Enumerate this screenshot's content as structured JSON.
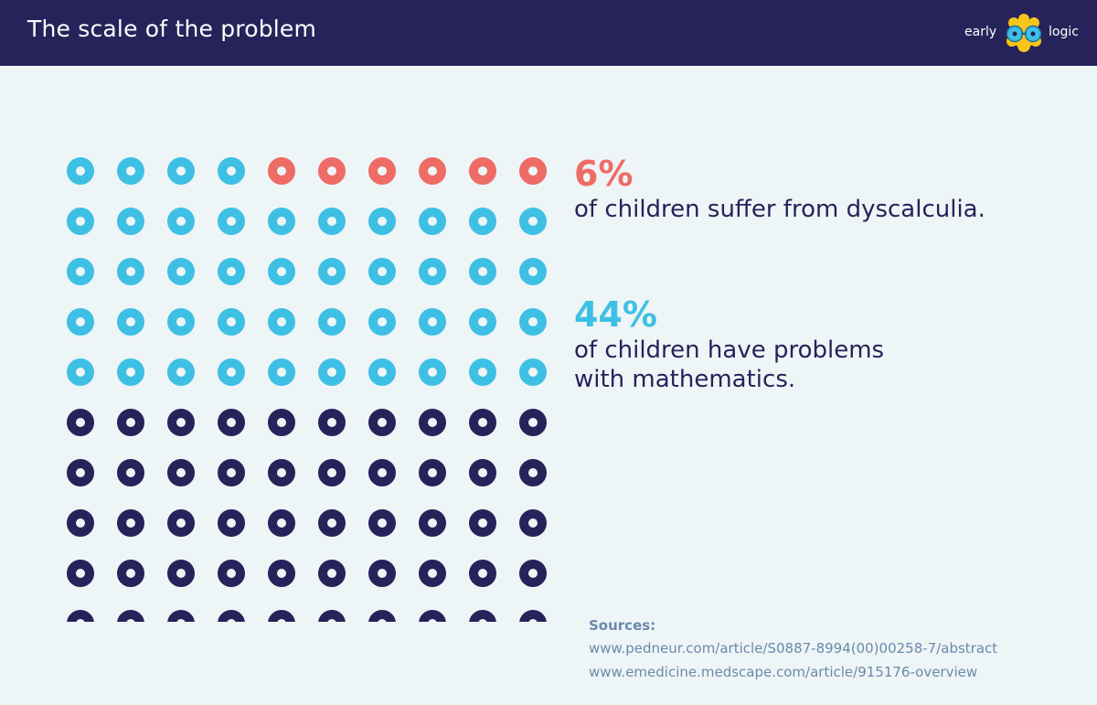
{
  "header": {
    "title": "The scale of the problem",
    "logo_left": "early",
    "logo_right": "logic"
  },
  "colors": {
    "header_bg": "#25235a",
    "page_bg": "#eef5f6",
    "red": "#ee6b66",
    "blue": "#3ec0e4",
    "navy": "#25235a",
    "logo_yellow": "#f5c518",
    "source_text": "#6b89ad"
  },
  "stats": [
    {
      "value": "6%",
      "text": "of children suffer from dyscalculia."
    },
    {
      "value": "44%",
      "text_line1": "of children have problems",
      "text_line2": "with mathematics."
    }
  ],
  "sources": {
    "label": "Sources:",
    "items": [
      "www.pedneur.com/article/S0887-8994(00)00258-7/abstract",
      "www.emedicine.medscape.com/article/915176-overview"
    ]
  },
  "chart_data": {
    "type": "waffle",
    "rows": 10,
    "columns": 10,
    "total": 100,
    "series": [
      {
        "value": 6,
        "color": "#ee6b66"
      },
      {
        "value": 44,
        "color": "#3ec0e4"
      },
      {
        "value": 50,
        "color": "#25235a"
      }
    ]
  }
}
